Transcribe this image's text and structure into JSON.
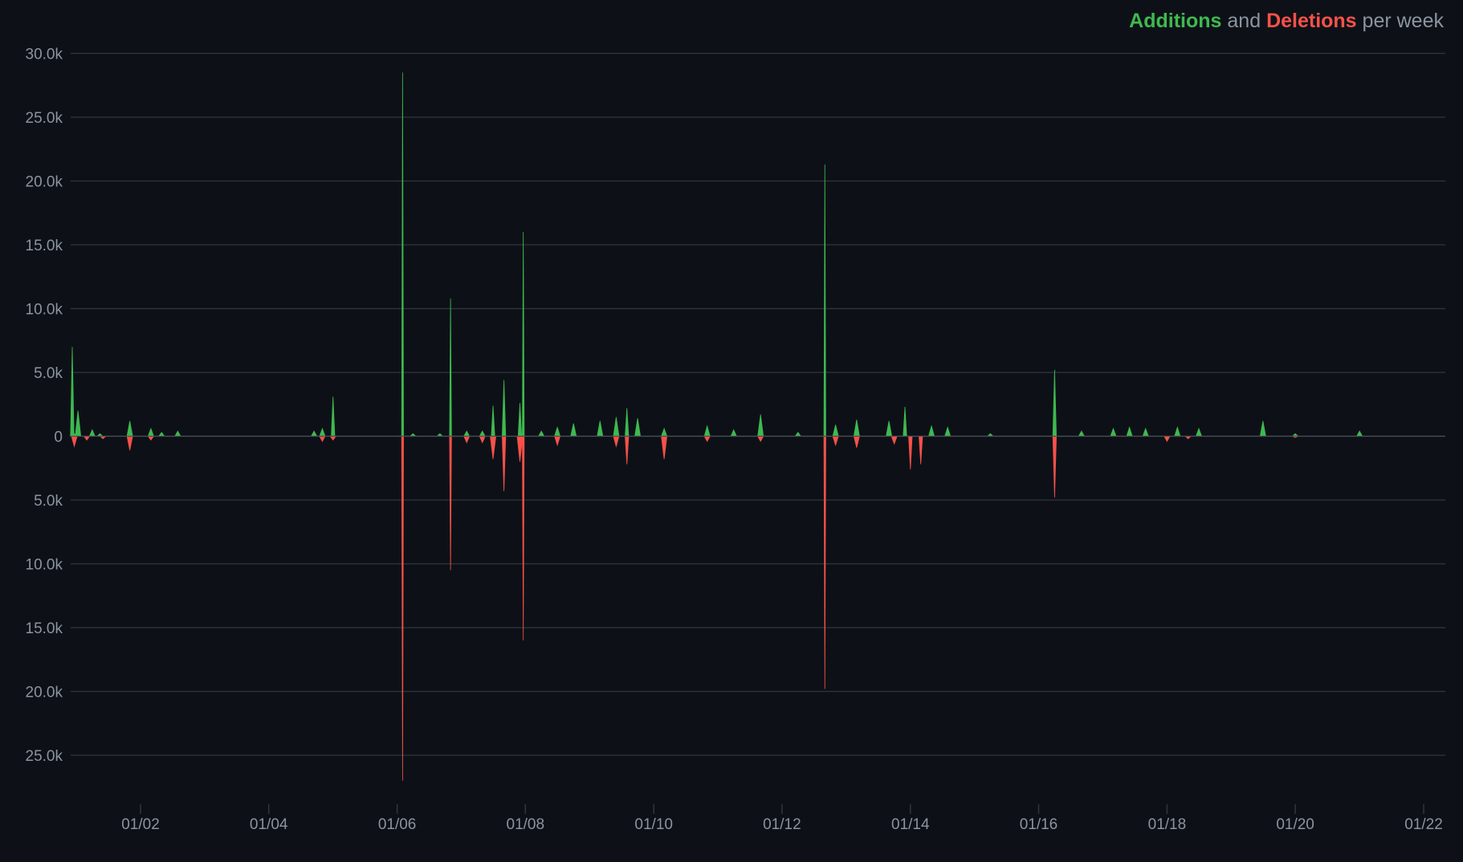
{
  "title": {
    "additions": "Additions",
    "and": "and",
    "deletions": "Deletions",
    "suffix": "per week"
  },
  "colors": {
    "background": "#0d1117",
    "grid": "#30363d",
    "axis_text": "#8b949e",
    "additions": "#3fb950",
    "deletions": "#f85149"
  },
  "chart_data": {
    "type": "area",
    "title": "Additions and Deletions per week",
    "xlabel": "",
    "ylabel": "",
    "x_domain": [
      "2000-12-01",
      "2022-01-01"
    ],
    "x_tick_labels": [
      "01/02",
      "01/04",
      "01/06",
      "01/08",
      "01/10",
      "01/12",
      "01/14",
      "01/16",
      "01/18",
      "01/20",
      "01/22"
    ],
    "x_tick_dates": [
      "2002-01-01",
      "2004-01-01",
      "2006-01-01",
      "2008-01-01",
      "2010-01-01",
      "2012-01-01",
      "2014-01-01",
      "2016-01-01",
      "2018-01-01",
      "2020-01-01",
      "2022-01-01"
    ],
    "y_tick_labels": [
      "30.0k",
      "25.0k",
      "20.0k",
      "15.0k",
      "10.0k",
      "5.0k",
      "0",
      "5.0k",
      "10.0k",
      "15.0k",
      "20.0k",
      "25.0k"
    ],
    "y_tick_values": [
      30000,
      25000,
      20000,
      15000,
      10000,
      5000,
      0,
      -5000,
      -10000,
      -15000,
      -20000,
      -25000
    ],
    "ylim": [
      -28000,
      30000
    ],
    "grid": true,
    "legend": "top-right",
    "series": [
      {
        "name": "Additions",
        "points": [
          [
            "2000-12-01",
            7000
          ],
          [
            "2000-12-15",
            300
          ],
          [
            "2001-01-10",
            2000
          ],
          [
            "2001-04-01",
            500
          ],
          [
            "2001-05-15",
            200
          ],
          [
            "2001-11-01",
            1200
          ],
          [
            "2002-03-01",
            600
          ],
          [
            "2002-05-01",
            300
          ],
          [
            "2002-08-01",
            400
          ],
          [
            "2004-09-15",
            400
          ],
          [
            "2004-11-01",
            600
          ],
          [
            "2005-01-01",
            3100
          ],
          [
            "2006-02-01",
            28500
          ],
          [
            "2006-04-01",
            200
          ],
          [
            "2006-09-01",
            200
          ],
          [
            "2006-11-01",
            10800
          ],
          [
            "2007-02-01",
            400
          ],
          [
            "2007-05-01",
            400
          ],
          [
            "2007-07-01",
            2400
          ],
          [
            "2007-09-01",
            4400
          ],
          [
            "2007-12-01",
            2600
          ],
          [
            "2007-12-20",
            16000
          ],
          [
            "2008-04-01",
            400
          ],
          [
            "2008-07-01",
            700
          ],
          [
            "2008-10-01",
            1000
          ],
          [
            "2009-03-01",
            1200
          ],
          [
            "2009-06-01",
            1500
          ],
          [
            "2009-08-01",
            2200
          ],
          [
            "2009-10-01",
            1400
          ],
          [
            "2010-03-01",
            600
          ],
          [
            "2010-11-01",
            800
          ],
          [
            "2011-04-01",
            500
          ],
          [
            "2011-09-01",
            1700
          ],
          [
            "2012-04-01",
            300
          ],
          [
            "2012-09-01",
            21300
          ],
          [
            "2012-11-01",
            900
          ],
          [
            "2013-03-01",
            1300
          ],
          [
            "2013-09-01",
            1200
          ],
          [
            "2013-12-01",
            2300
          ],
          [
            "2014-05-01",
            800
          ],
          [
            "2014-08-01",
            700
          ],
          [
            "2015-04-01",
            200
          ],
          [
            "2016-04-01",
            5200
          ],
          [
            "2016-09-01",
            400
          ],
          [
            "2017-03-01",
            600
          ],
          [
            "2017-06-01",
            700
          ],
          [
            "2017-09-01",
            600
          ],
          [
            "2018-03-01",
            700
          ],
          [
            "2018-07-01",
            600
          ],
          [
            "2019-07-01",
            1200
          ],
          [
            "2020-01-01",
            200
          ],
          [
            "2021-01-01",
            400
          ]
        ]
      },
      {
        "name": "Deletions",
        "points": [
          [
            "2000-12-20",
            -800
          ],
          [
            "2001-03-01",
            -300
          ],
          [
            "2001-06-01",
            -200
          ],
          [
            "2001-11-01",
            -1100
          ],
          [
            "2002-03-01",
            -300
          ],
          [
            "2004-11-01",
            -400
          ],
          [
            "2005-01-01",
            -300
          ],
          [
            "2006-02-01",
            -27000
          ],
          [
            "2006-11-01",
            -10500
          ],
          [
            "2007-02-01",
            -500
          ],
          [
            "2007-05-01",
            -500
          ],
          [
            "2007-07-01",
            -1800
          ],
          [
            "2007-09-01",
            -4300
          ],
          [
            "2007-12-01",
            -2000
          ],
          [
            "2007-12-20",
            -16000
          ],
          [
            "2008-07-01",
            -700
          ],
          [
            "2009-06-01",
            -800
          ],
          [
            "2009-08-01",
            -2200
          ],
          [
            "2010-03-01",
            -1800
          ],
          [
            "2010-11-01",
            -400
          ],
          [
            "2011-09-01",
            -400
          ],
          [
            "2012-09-01",
            -19800
          ],
          [
            "2012-11-01",
            -700
          ],
          [
            "2013-03-01",
            -900
          ],
          [
            "2013-10-01",
            -600
          ],
          [
            "2014-01-01",
            -2600
          ],
          [
            "2014-03-01",
            -2200
          ],
          [
            "2016-04-01",
            -4800
          ],
          [
            "2018-01-01",
            -400
          ],
          [
            "2018-05-01",
            -200
          ],
          [
            "2020-01-01",
            -100
          ]
        ]
      }
    ]
  }
}
